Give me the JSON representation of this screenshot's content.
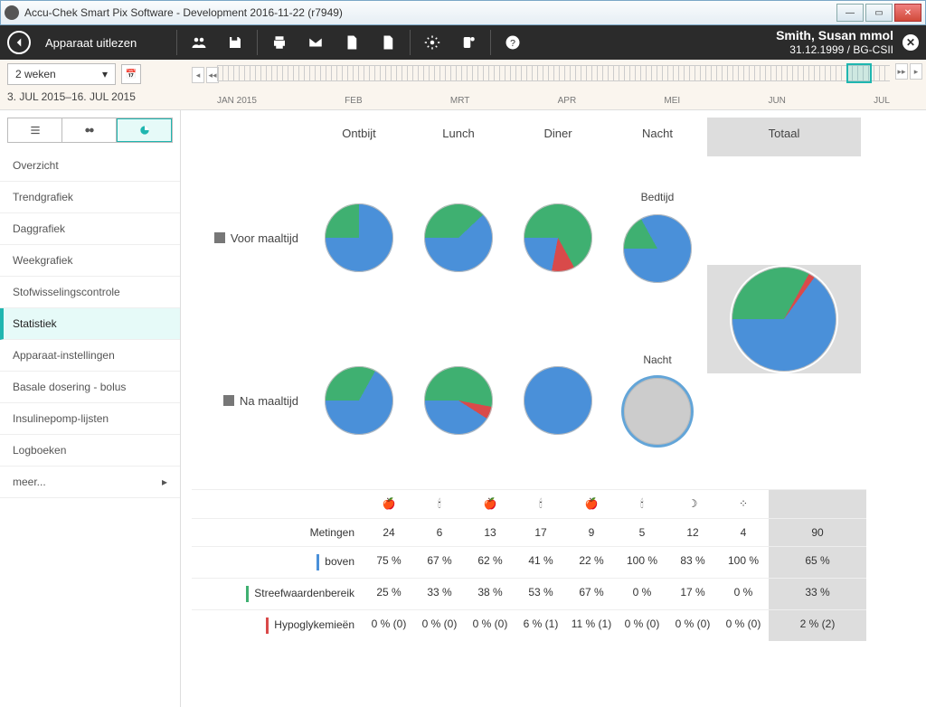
{
  "window": {
    "title": "Accu-Chek Smart Pix Software - Development 2016-11-22 (r7949)"
  },
  "header": {
    "readout_label": "Apparaat uitlezen",
    "patient_name": "Smith, Susan mmol",
    "patient_sub": "31.12.1999 / BG-CSII"
  },
  "range": {
    "period_label": "2 weken",
    "date_range": "3. JUL 2015–16. JUL 2015",
    "months": [
      "JAN 2015",
      "FEB",
      "MRT",
      "APR",
      "MEI",
      "JUN",
      "JUL"
    ]
  },
  "sidebar": {
    "items": [
      "Overzicht",
      "Trendgrafiek",
      "Daggrafiek",
      "Weekgrafiek",
      "Stofwisselingscontrole",
      "Statistiek",
      "Apparaat-instellingen",
      "Basale dosering - bolus",
      "Insulinepomp-lijsten",
      "Logboeken",
      "meer..."
    ],
    "active_index": 5
  },
  "columns": {
    "c1": "Ontbijt",
    "c2": "Lunch",
    "c3": "Diner",
    "c4": "Nacht",
    "total": "Totaal",
    "sub4a": "Bedtijd",
    "sub4b": "Nacht"
  },
  "rows": {
    "r1": "Voor maaltijd",
    "r2": "Na maaltijd"
  },
  "colors": {
    "blue": "#4a90d9",
    "green": "#3fb071",
    "red": "#d94a4a",
    "grey": "#cccccc"
  },
  "pies": {
    "r1c1": {
      "blue": 75,
      "green": 25,
      "red": 0
    },
    "r1c2": {
      "blue": 62,
      "green": 38,
      "red": 0
    },
    "r1c3": {
      "blue": 22,
      "green": 67,
      "red": 11
    },
    "r1c4": {
      "blue": 83,
      "green": 17,
      "red": 0
    },
    "r2c1": {
      "blue": 67,
      "green": 33,
      "red": 0
    },
    "r2c2": {
      "blue": 41,
      "green": 53,
      "red": 6
    },
    "r2c3": {
      "blue": 100,
      "green": 0,
      "red": 0
    },
    "r2c4": {
      "empty": true
    },
    "total": {
      "blue": 65,
      "green": 33,
      "red": 2
    }
  },
  "stats": {
    "row_labels": [
      "Metingen",
      "boven",
      "Streefwaardenbereik",
      "Hypoglykemieën"
    ],
    "data": [
      [
        "24",
        "6",
        "13",
        "17",
        "9",
        "5",
        "12",
        "4"
      ],
      [
        "75 %",
        "67 %",
        "62 %",
        "41 %",
        "22 %",
        "100 %",
        "83 %",
        "100 %"
      ],
      [
        "25 %",
        "33 %",
        "38 %",
        "53 %",
        "67 %",
        "0 %",
        "17 %",
        "0 %"
      ],
      [
        "0 % (0)",
        "0 % (0)",
        "0 % (0)",
        "6 % (1)",
        "11 % (1)",
        "0 % (0)",
        "0 % (0)",
        "0 % (0)"
      ]
    ],
    "totals": [
      "90",
      "65 %",
      "33 %",
      "2 % (2)"
    ]
  }
}
